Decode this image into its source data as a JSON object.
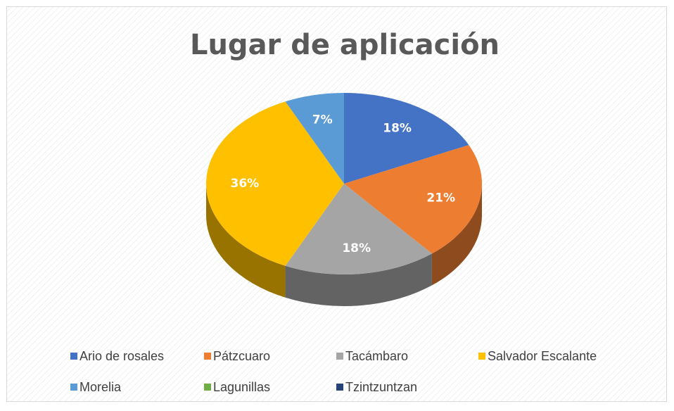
{
  "chart_data": {
    "type": "pie",
    "title": "Lugar de aplicación",
    "categories": [
      "Ario de rosales",
      "Pátzcuaro",
      "Tacámbaro",
      "Salvador Escalante",
      "Morelia",
      "Lagunillas",
      "Tzintzuntzan"
    ],
    "values": [
      18,
      21,
      18,
      36,
      7,
      0,
      0
    ],
    "value_labels": [
      "18%",
      "21%",
      "18%",
      "36%",
      "7%",
      null,
      null
    ],
    "colors": [
      "#4472c4",
      "#ed7d31",
      "#a5a5a5",
      "#ffc000",
      "#5b9bd5",
      "#70ad47",
      "#264478"
    ],
    "legend": "bottom"
  }
}
